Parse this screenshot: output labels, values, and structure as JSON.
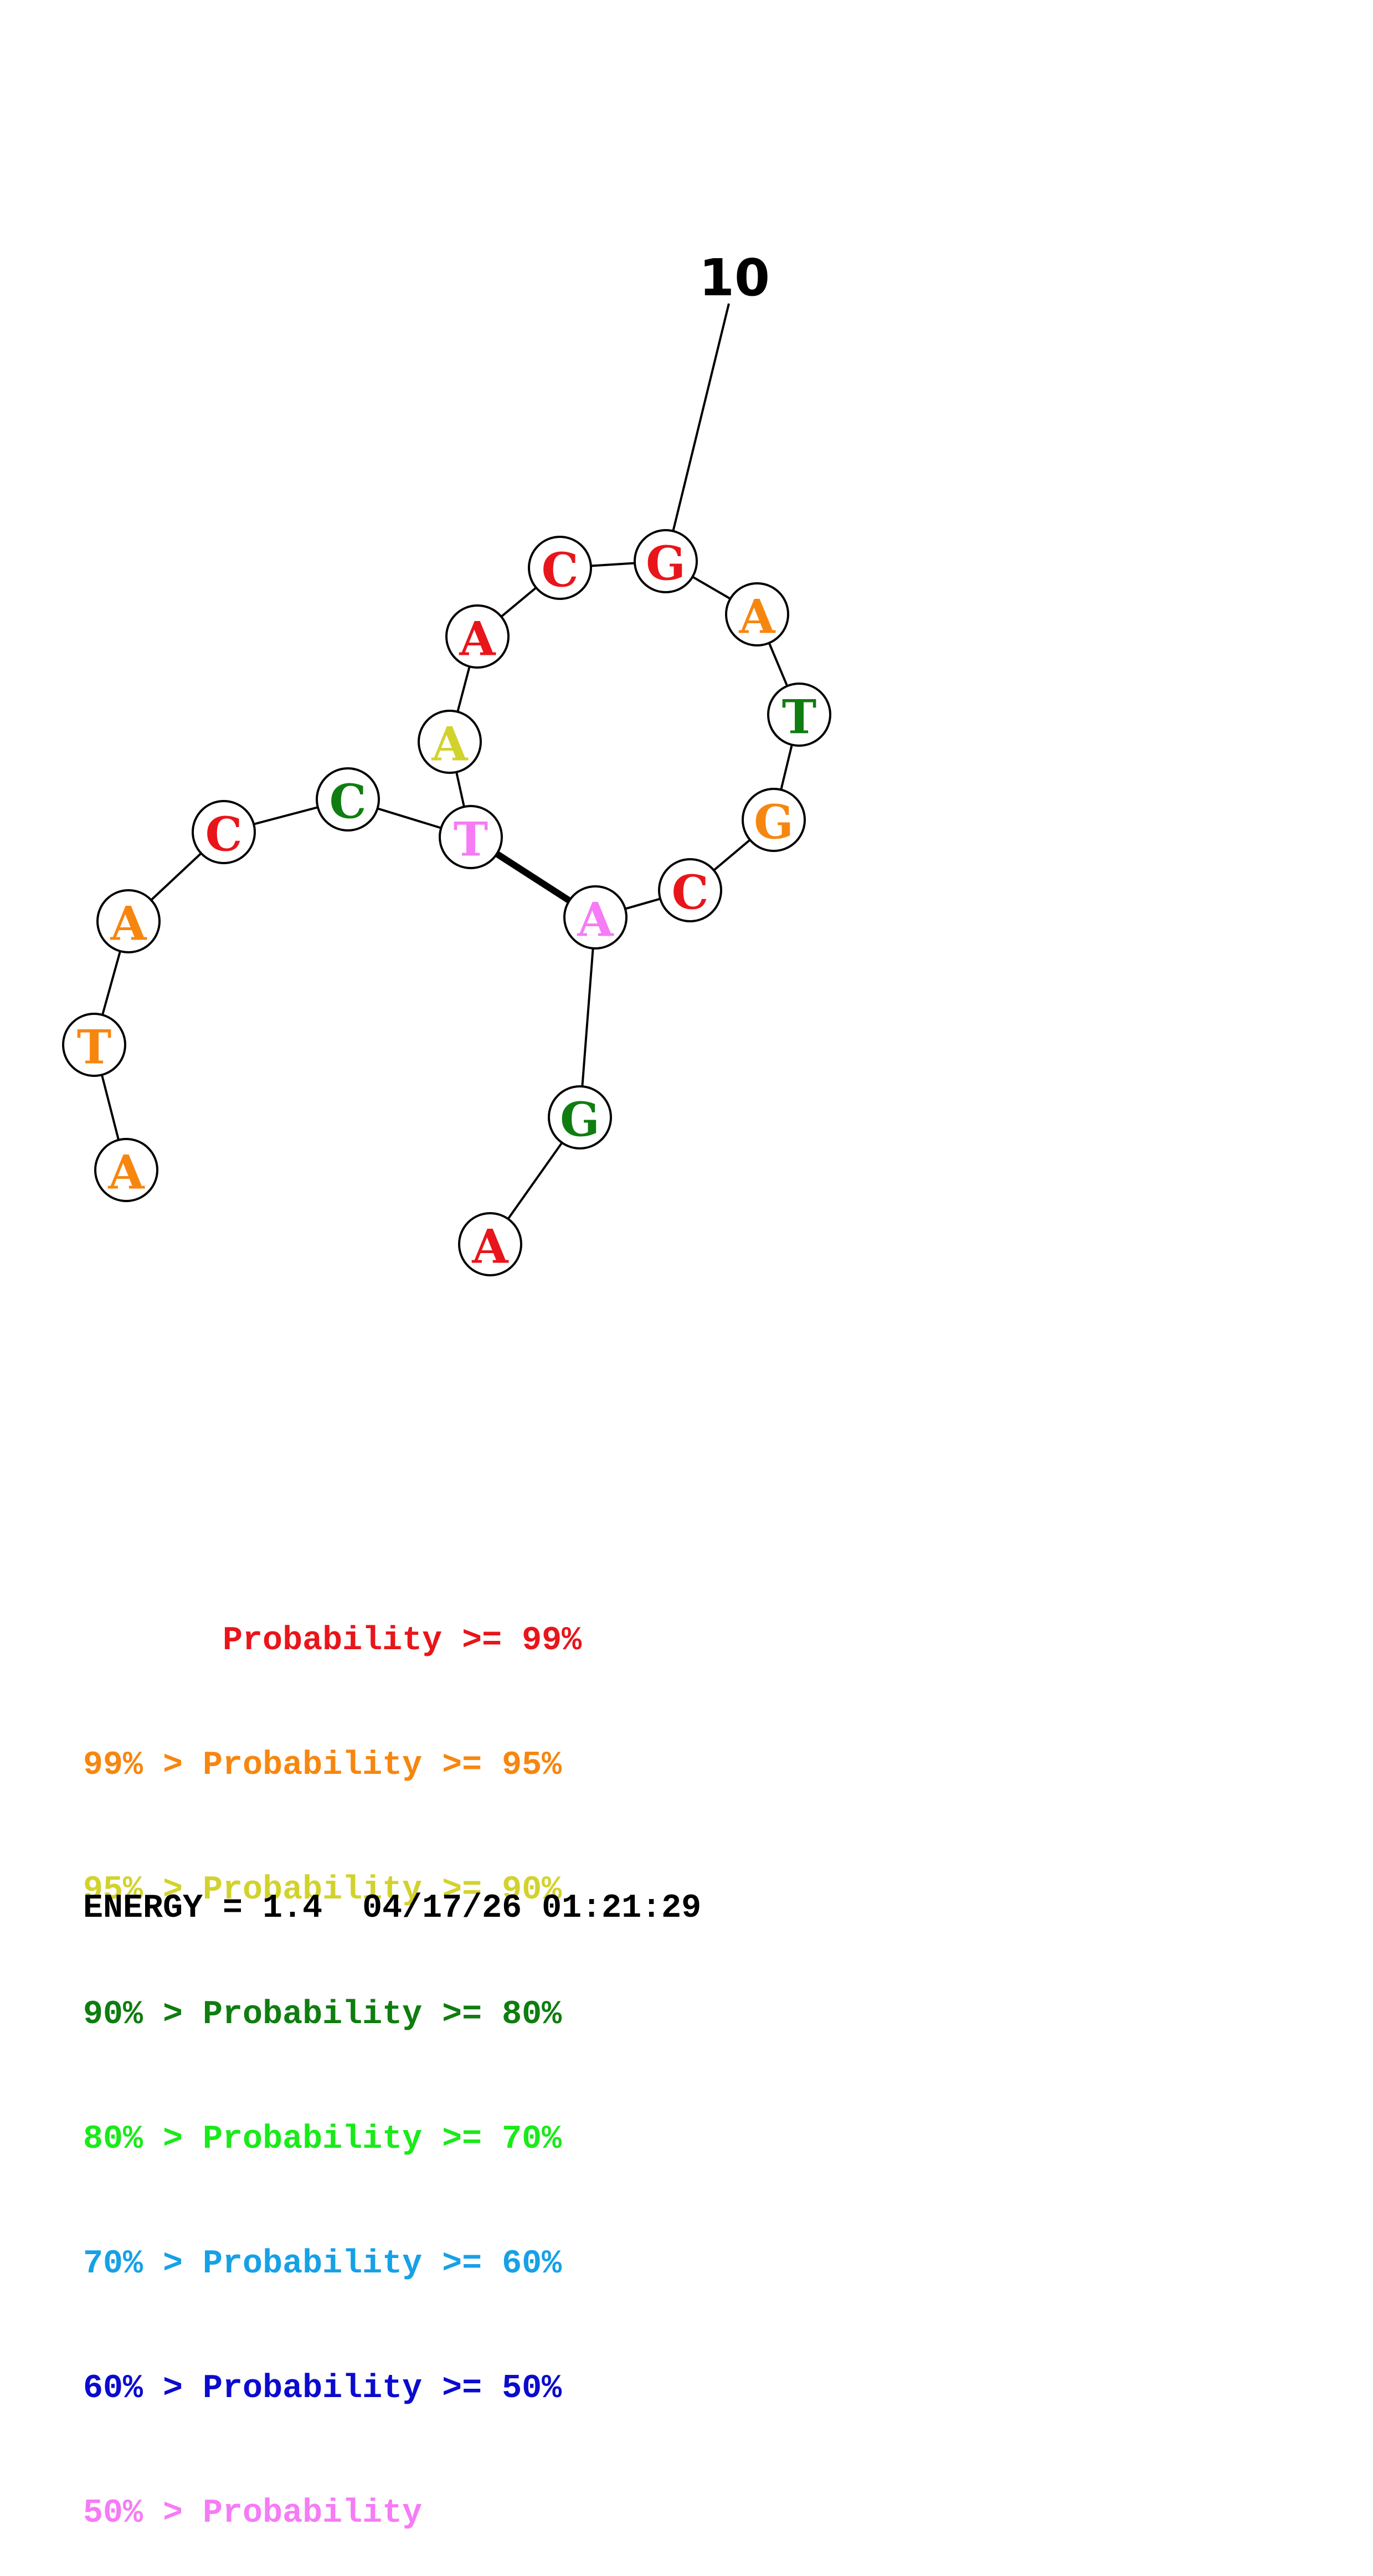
{
  "structure": {
    "sequence": [
      "A",
      "T",
      "A",
      "C",
      "C",
      "T",
      "A",
      "A",
      "C",
      "G",
      "A",
      "T",
      "G",
      "C",
      "A",
      "G",
      "A"
    ],
    "probability_tier": [
      1,
      1,
      1,
      0,
      3,
      7,
      2,
      0,
      0,
      0,
      1,
      3,
      1,
      0,
      7,
      3,
      0
    ],
    "pairs": [
      [
        6,
        15
      ]
    ],
    "tick_labels": [
      {
        "index": 10,
        "label": "10"
      }
    ]
  },
  "legend": {
    "rows": [
      {
        "prefix": "       ",
        "label": "Probability",
        "suffix": " >= 99%",
        "color": "#e8151a"
      },
      {
        "prefix": "99% > ",
        "label": "Probability",
        "suffix": " >= 95%",
        "color": "#f7860f"
      },
      {
        "prefix": "95% > ",
        "label": "Probability",
        "suffix": " >= 90%",
        "color": "#d2d22d"
      },
      {
        "prefix": "90% > ",
        "label": "Probability",
        "suffix": " >= 80%",
        "color": "#0f7d10"
      },
      {
        "prefix": "80% > ",
        "label": "Probability",
        "suffix": " >= 70%",
        "color": "#19ea19"
      },
      {
        "prefix": "70% > ",
        "label": "Probability",
        "suffix": " >= 60%",
        "color": "#16a1e6"
      },
      {
        "prefix": "60% > ",
        "label": "Probability",
        "suffix": " >= 50%",
        "color": "#0b0bcf"
      },
      {
        "prefix": "50% > ",
        "label": "Probability",
        "suffix": "",
        "color": "#f67bf6"
      }
    ]
  },
  "footer": {
    "energy_text": "ENERGY = 1.4  04/17/26 01:21:29"
  }
}
